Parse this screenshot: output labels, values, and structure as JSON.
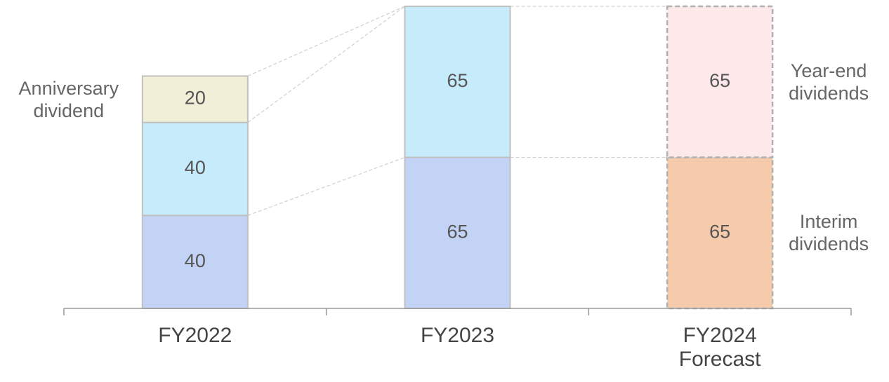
{
  "chart_data": {
    "type": "stacked_bar",
    "categories": [
      "FY2022",
      "FY2023",
      "FY2024 Forecast"
    ],
    "series": [
      {
        "name": "Interim dividends",
        "colors": [
          "#c2d3f5",
          "#c2d3f5",
          "#f6cbab"
        ],
        "values": [
          40,
          65,
          65
        ]
      },
      {
        "name": "Year-end dividends",
        "colors": [
          "#c6ecfb",
          "#c6ecfb",
          "#fde9ea"
        ],
        "values": [
          40,
          65,
          65
        ]
      },
      {
        "name": "Anniversary dividend",
        "colors": [
          "#f1efd8",
          "#f1efd8",
          "#f1efd8"
        ],
        "values": [
          20,
          null,
          null
        ]
      }
    ],
    "dashed": [
      false,
      false,
      true
    ],
    "ylim": [
      0,
      130
    ]
  }
}
